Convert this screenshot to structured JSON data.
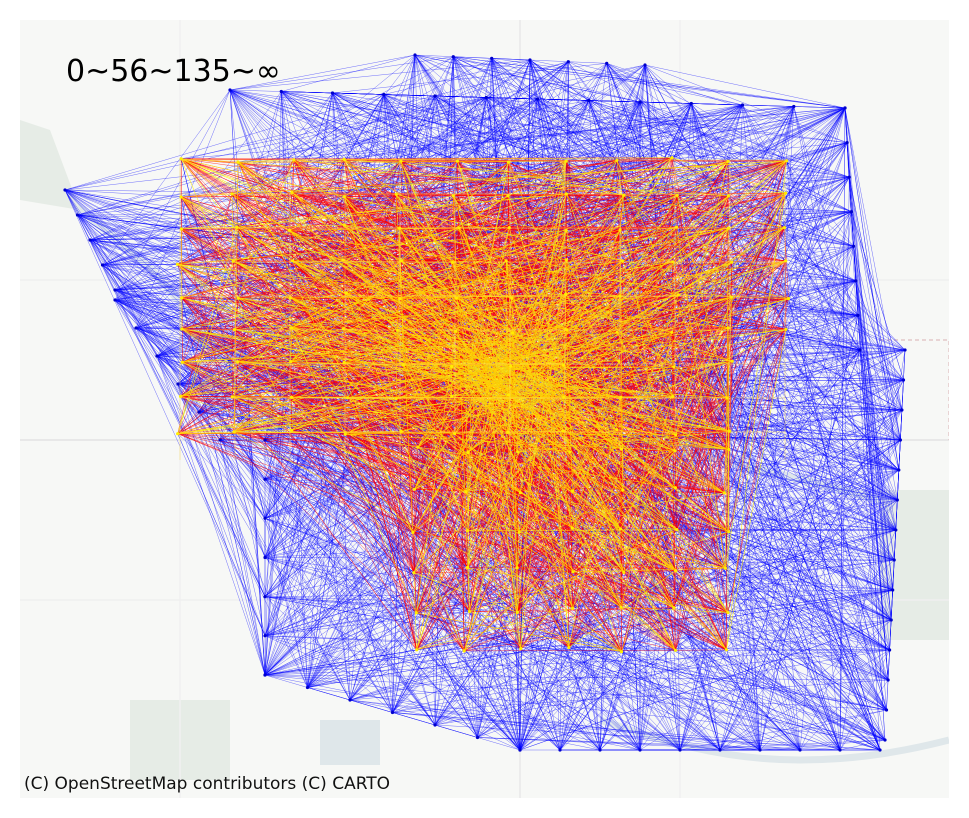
{
  "legend": {
    "text": "0~56~135~∞"
  },
  "attribution": {
    "text": "(C) OpenStreetMap contributors (C) CARTO"
  },
  "colors": {
    "low": "#0000ff",
    "mid": "#ff0000",
    "high": "#ffee00",
    "basemap": "#f7f8f6",
    "water": "#dfe7ea",
    "park": "#e6ece6"
  },
  "map": {
    "basemap": "light",
    "network_bins": [
      "0-56",
      "56-135",
      "135-inf"
    ]
  }
}
